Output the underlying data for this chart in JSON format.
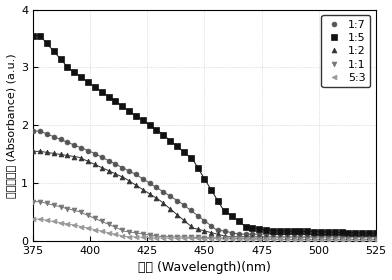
{
  "xlim": [
    375,
    525
  ],
  "ylim": [
    0,
    4
  ],
  "xticks": [
    375,
    400,
    425,
    450,
    475,
    500,
    525
  ],
  "yticks": [
    0,
    1,
    2,
    3,
    4
  ],
  "xlabel": "波长 (Wavelength)(nm)",
  "ylabel": "相对吸光度 (Absorbance) (a.u.)",
  "series": [
    {
      "label": "1:7",
      "marker": "o",
      "color": "#555555",
      "markersize": 3.5,
      "marker_every": 3,
      "params": [
        1.9,
        430,
        0.1,
        0.12,
        390,
        0.5,
        0.15
      ]
    },
    {
      "label": "1:5",
      "marker": "s",
      "color": "#111111",
      "markersize": 4,
      "marker_every": 3,
      "params": [
        3.6,
        452,
        0.18,
        0.12,
        382,
        2.0,
        0.3
      ]
    },
    {
      "label": "1:2",
      "marker": "^",
      "color": "#333333",
      "markersize": 3.5,
      "marker_every": 3,
      "params": [
        1.55,
        445,
        0.13,
        0.08,
        388,
        0.5,
        0.12
      ]
    },
    {
      "label": "1:1",
      "marker": "v",
      "color": "#777777",
      "markersize": 3.5,
      "marker_every": 3,
      "params": [
        0.68,
        420,
        0.14,
        0.04,
        382,
        0.2,
        0.06
      ]
    },
    {
      "label": "5:3",
      "marker": "<",
      "color": "#999999",
      "markersize": 3.5,
      "marker_every": 3,
      "params": [
        0.38,
        410,
        0.15,
        0.02,
        380,
        0.1,
        0.04
      ]
    }
  ],
  "legend_loc": "upper right",
  "background_color": "#ffffff",
  "fig_width": 3.92,
  "fig_height": 2.8,
  "dpi": 100
}
